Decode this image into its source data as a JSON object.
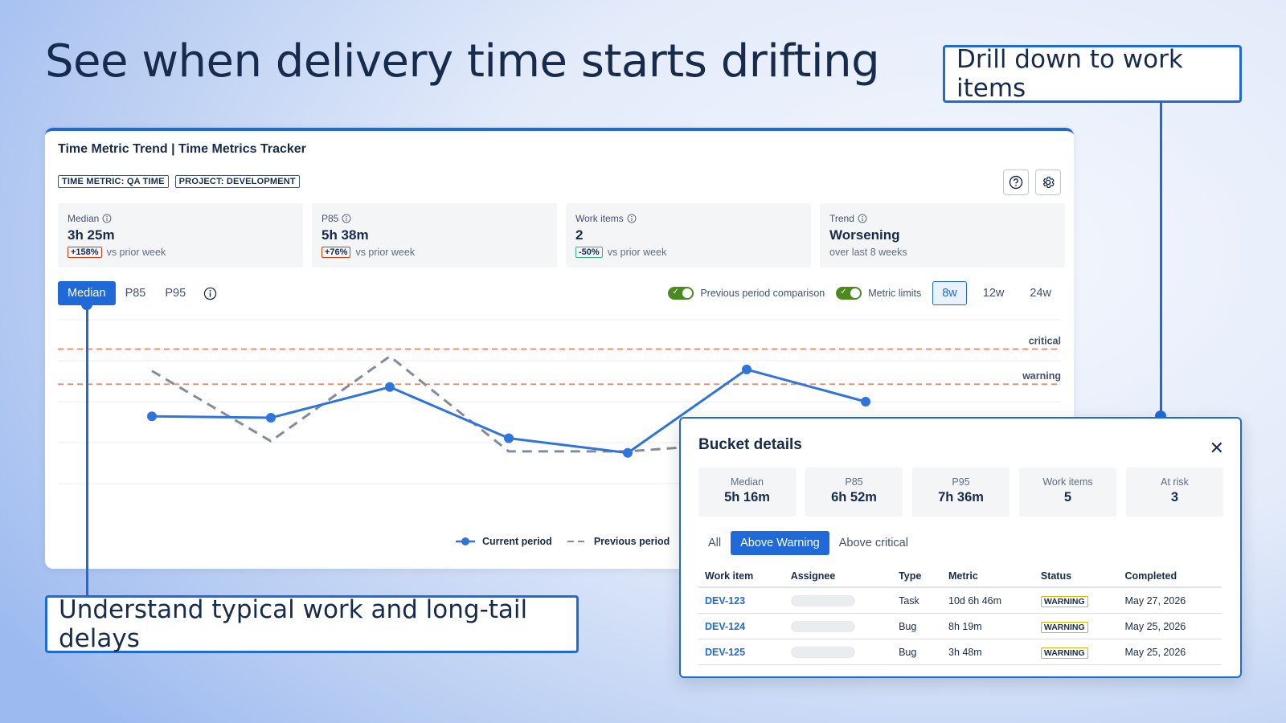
{
  "headline": "See when delivery time starts drifting",
  "callouts": {
    "drilldown": "Drill down to work items",
    "understand": "Understand typical work and long-tail delays"
  },
  "card": {
    "title": "Time Metric Trend | Time Metrics Tracker",
    "tags": [
      "TIME METRIC: QA TIME",
      "PROJECT: DEVELOPMENT"
    ],
    "icons": [
      "help-icon",
      "gear-icon"
    ],
    "stats": [
      {
        "label": "Median",
        "value": "3h 25m",
        "badge": "+158%",
        "badge_kind": "red",
        "note": "vs prior week"
      },
      {
        "label": "P85",
        "value": "5h 38m",
        "badge": "+76%",
        "badge_kind": "red",
        "note": "vs prior week"
      },
      {
        "label": "Work items",
        "value": "2",
        "badge": "-50%",
        "badge_kind": "green",
        "note": "vs prior week"
      },
      {
        "label": "Trend",
        "value": "Worsening",
        "badge": "",
        "badge_kind": "",
        "note": "over last 8 weeks"
      }
    ],
    "metric_tabs": [
      "Median",
      "P85",
      "P95"
    ],
    "active_metric": "Median",
    "toggles": {
      "previous_period": {
        "label": "Previous period comparison",
        "on": true
      },
      "metric_limits": {
        "label": "Metric limits",
        "on": true
      }
    },
    "ranges": [
      "8w",
      "12w",
      "24w"
    ],
    "active_range": "8w"
  },
  "chart_data": {
    "type": "line",
    "x": [
      1,
      2,
      3,
      4,
      5,
      6,
      7,
      8
    ],
    "series": [
      {
        "name": "Current period",
        "style": "solid",
        "color": "#2f74dc",
        "values": [
          3.7,
          3.65,
          4.7,
          2.95,
          2.45,
          5.3,
          4.2,
          null
        ]
      },
      {
        "name": "Previous period",
        "style": "dashed",
        "color": "#858c99",
        "values": [
          5.25,
          2.85,
          5.75,
          2.5,
          2.5,
          2.8,
          null,
          null
        ]
      }
    ],
    "thresholds": [
      {
        "label": "critical",
        "value": 6.0,
        "color": "#e8613c"
      },
      {
        "label": "warning",
        "value": 4.8,
        "color": "#e8613c"
      }
    ],
    "ylim": [
      0,
      7
    ],
    "grid": true,
    "legend_position": "bottom-center"
  },
  "bucket": {
    "title": "Bucket details",
    "stats": [
      {
        "label": "Median",
        "value": "5h 16m"
      },
      {
        "label": "P85",
        "value": "6h 52m"
      },
      {
        "label": "P95",
        "value": "7h 36m"
      },
      {
        "label": "Work items",
        "value": "5"
      },
      {
        "label": "At risk",
        "value": "3"
      }
    ],
    "tabs": [
      "All",
      "Above Warning",
      "Above critical"
    ],
    "active_tab": "Above Warning",
    "columns": [
      "Work item",
      "Assignee",
      "Type",
      "Metric",
      "Status",
      "Completed"
    ],
    "rows": [
      {
        "id": "DEV-123",
        "type": "Task",
        "metric": "10d 6h 46m",
        "status": "WARNING",
        "completed": "May 27, 2026"
      },
      {
        "id": "DEV-124",
        "type": "Bug",
        "metric": "8h 19m",
        "status": "WARNING",
        "completed": "May 25, 2026"
      },
      {
        "id": "DEV-125",
        "type": "Bug",
        "metric": "3h 48m",
        "status": "WARNING",
        "completed": "May 25, 2026"
      }
    ]
  }
}
